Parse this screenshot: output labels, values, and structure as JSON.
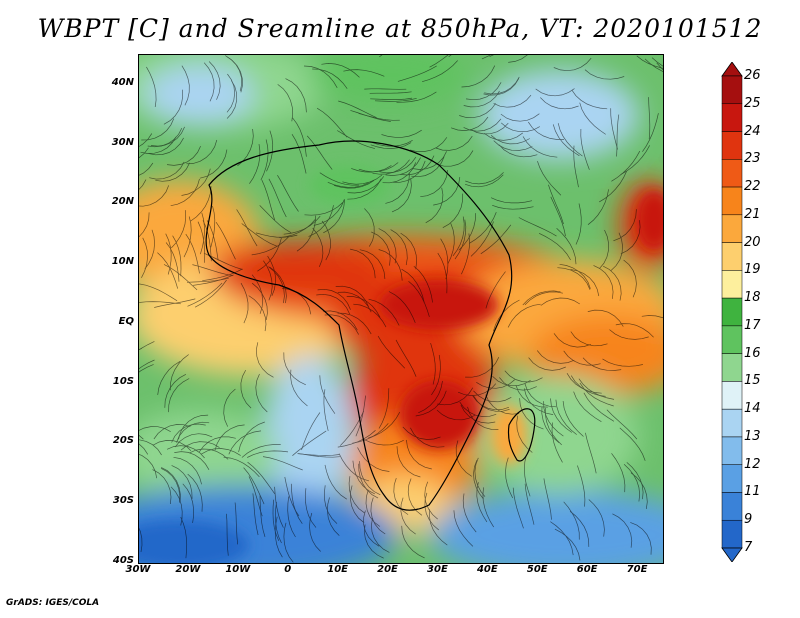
{
  "title": "WBPT [C] and Sreamline at 850hPa, VT: 2020101512",
  "footer": "GrADS: IGES/COLA",
  "map": {
    "lat_ticks": [
      "40N",
      "30N",
      "20N",
      "10N",
      "EQ",
      "10S",
      "20S",
      "30S",
      "40S"
    ],
    "lat_values": [
      40,
      30,
      20,
      10,
      0,
      -10,
      -20,
      -30,
      -40
    ],
    "lon_ticks": [
      "30W",
      "20W",
      "10W",
      "0",
      "10E",
      "20E",
      "30E",
      "40E",
      "50E",
      "60E",
      "70E"
    ],
    "lon_values": [
      -30,
      -20,
      -10,
      0,
      10,
      20,
      30,
      40,
      50,
      60,
      70
    ],
    "lon_range": [
      -30,
      75
    ],
    "lat_range": [
      -40,
      45
    ]
  },
  "colorbar": {
    "labels": [
      "26",
      "25",
      "24",
      "23",
      "22",
      "21",
      "20",
      "19",
      "18",
      "17",
      "16",
      "15",
      "14",
      "13",
      "12",
      "11",
      "9",
      "7"
    ],
    "colors": [
      "#a50f0f",
      "#c8170f",
      "#e0340f",
      "#ef5a16",
      "#f7841b",
      "#fba83c",
      "#fdcf6e",
      "#fdef9d",
      "#3fb33f",
      "#5fc35f",
      "#8fd68f",
      "#dff2f7",
      "#aad4f2",
      "#82bcec",
      "#5aa0e4",
      "#3a82d8",
      "#2367c9"
    ]
  }
}
